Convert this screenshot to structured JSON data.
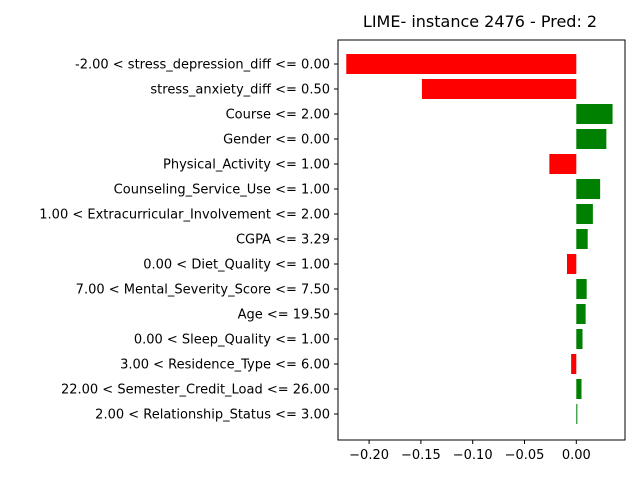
{
  "chart_data": {
    "type": "bar",
    "orientation": "horizontal",
    "title": "LIME- instance 2476 - Pred: 2",
    "xlabel": "",
    "ylabel": "",
    "xlim": [
      -0.23,
      0.047
    ],
    "xticks": [
      -0.2,
      -0.15,
      -0.1,
      -0.05,
      0.0
    ],
    "xtick_labels": [
      "−0.20",
      "−0.15",
      "−0.10",
      "−0.05",
      "0.00"
    ],
    "grid": false,
    "colors": {
      "positive": "#008000",
      "negative": "#ff0000"
    },
    "categories": [
      "-2.00 < stress_depression_diff <= 0.00",
      "stress_anxiety_diff <= 0.50",
      "Course <= 2.00",
      "Gender <= 0.00",
      "Physical_Activity <= 1.00",
      "Counseling_Service_Use <= 1.00",
      "1.00 < Extracurricular_Involvement <= 2.00",
      "CGPA <= 3.29",
      "0.00 < Diet_Quality <= 1.00",
      "7.00 < Mental_Severity_Score <= 7.50",
      "Age <= 19.50",
      "0.00 < Sleep_Quality <= 1.00",
      "3.00 < Residence_Type <= 6.00",
      "22.00 < Semester_Credit_Load <= 26.00",
      "2.00 < Relationship_Status <= 3.00"
    ],
    "values": [
      -0.222,
      -0.149,
      0.035,
      0.029,
      -0.026,
      0.023,
      0.016,
      0.011,
      -0.009,
      0.01,
      0.009,
      0.006,
      -0.005,
      0.005,
      0.001
    ]
  }
}
